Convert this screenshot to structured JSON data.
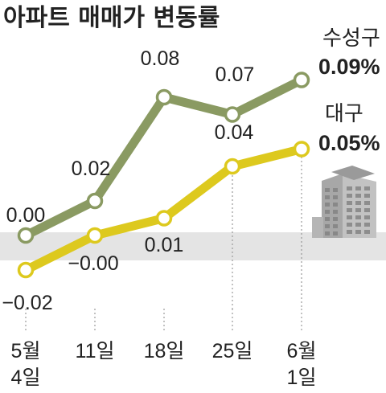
{
  "title": "아파트 매매가 변동률",
  "colors": {
    "suseong": "#8a9a62",
    "daegu": "#ddc91e",
    "band": "#e4e4e4",
    "text": "#222222"
  },
  "icon": "apartment-building-icon",
  "chart_data": {
    "type": "line",
    "categories": [
      "5월\n4일",
      "11일",
      "18일",
      "25일",
      "6월\n1일"
    ],
    "ylim": [
      -0.03,
      0.1
    ],
    "grid": false,
    "legend": "right",
    "series": [
      {
        "name": "수성구",
        "values": [
          0.0,
          0.02,
          0.08,
          0.07,
          0.09
        ],
        "labels": [
          "0.00",
          "0.02",
          "0.08",
          "0.07",
          "0.09%"
        ],
        "color": "#8a9a62"
      },
      {
        "name": "대구",
        "values": [
          -0.02,
          -0.0,
          0.01,
          0.04,
          0.05
        ],
        "labels": [
          "−0.02",
          "−0.00",
          "0.01",
          "0.04",
          "0.05%"
        ],
        "color": "#ddc91e"
      }
    ]
  }
}
